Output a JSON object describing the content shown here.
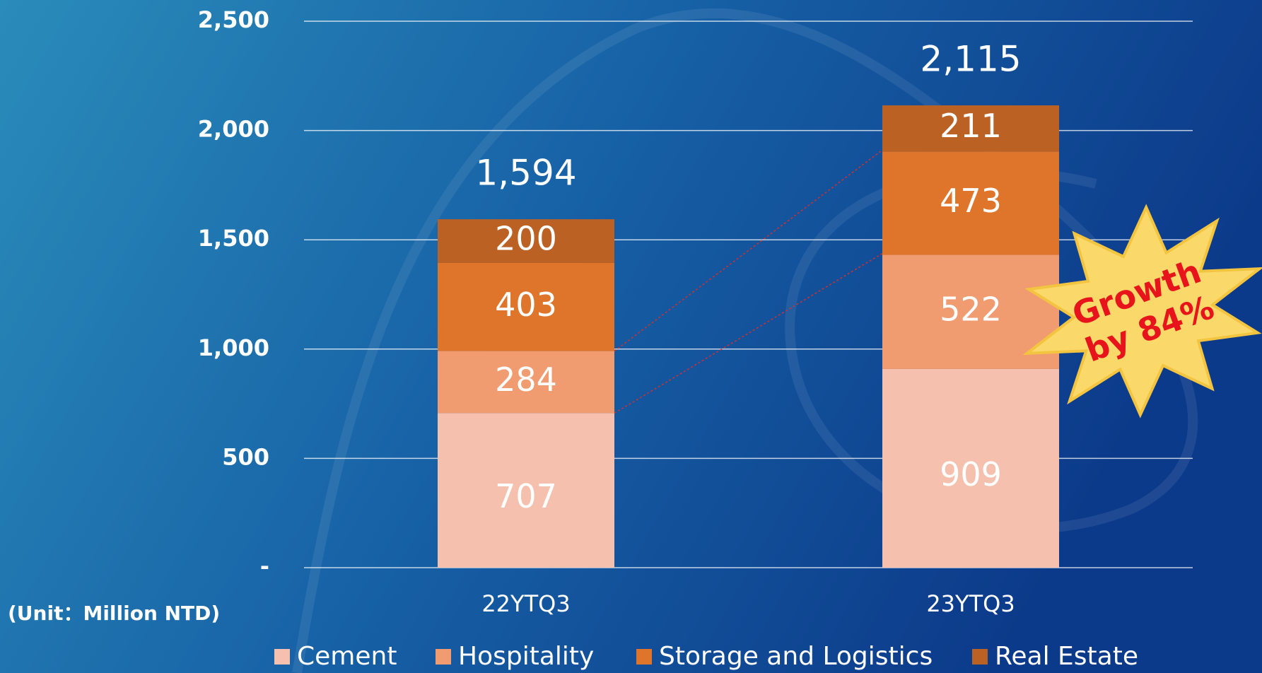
{
  "chart_data": {
    "type": "stacked-bar",
    "categories": [
      "22YTQ3",
      "23YTQ3"
    ],
    "series": [
      {
        "name": "Cement",
        "color": "#f5c1ae",
        "values": [
          707,
          909
        ]
      },
      {
        "name": "Hospitality",
        "color": "#f19b71",
        "values": [
          284,
          522
        ]
      },
      {
        "name": "Storage and Logistics",
        "color": "#df752b",
        "values": [
          403,
          473
        ]
      },
      {
        "name": "Real Estate",
        "color": "#bb6124",
        "values": [
          200,
          211
        ]
      }
    ],
    "totals": [
      1594,
      2115
    ],
    "total_labels": [
      "1,594",
      "2,115"
    ],
    "ylim": [
      0,
      2500
    ],
    "yticks": [
      {
        "value": 0,
        "label": "-"
      },
      500,
      {
        "value": 1000,
        "label": "1,000"
      },
      {
        "value": 1500,
        "label": "1,500"
      },
      {
        "value": 2000,
        "label": "2,000"
      },
      {
        "value": 2500,
        "label": "2,500"
      }
    ],
    "grid": true,
    "legend": "bottom",
    "unit_label": "(Unit：Million NTD)",
    "annotation": [
      "Growth",
      "by 84%"
    ]
  }
}
